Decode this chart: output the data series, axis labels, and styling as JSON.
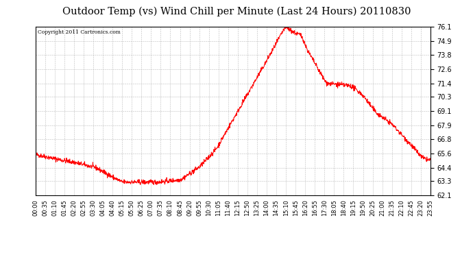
{
  "title": "Outdoor Temp (vs) Wind Chill per Minute (Last 24 Hours) 20110830",
  "copyright_text": "Copyright 2011 Cartronics.com",
  "line_color": "#ff0000",
  "background_color": "#ffffff",
  "plot_bg_color": "#ffffff",
  "grid_color": "#aaaaaa",
  "y_min": 62.1,
  "y_max": 76.1,
  "y_ticks": [
    62.1,
    63.3,
    64.4,
    65.6,
    66.8,
    67.9,
    69.1,
    70.3,
    71.4,
    72.6,
    73.8,
    74.9,
    76.1
  ],
  "x_labels": [
    "00:00",
    "00:35",
    "01:10",
    "01:45",
    "02:20",
    "02:55",
    "03:30",
    "04:05",
    "04:40",
    "05:15",
    "05:50",
    "06:25",
    "07:00",
    "07:35",
    "08:10",
    "08:45",
    "09:20",
    "09:55",
    "10:30",
    "11:05",
    "11:40",
    "12:15",
    "12:50",
    "13:25",
    "14:00",
    "14:35",
    "15:10",
    "15:45",
    "16:20",
    "16:55",
    "17:30",
    "18:05",
    "18:40",
    "19:15",
    "19:50",
    "20:25",
    "21:00",
    "21:35",
    "22:10",
    "22:45",
    "23:20",
    "23:55"
  ],
  "key_times": [
    0,
    80,
    150,
    220,
    315,
    380,
    450,
    530,
    600,
    660,
    710,
    760,
    810,
    855,
    910,
    945,
    970,
    990,
    1020,
    1060,
    1110,
    1150,
    1190,
    1240,
    1300,
    1360,
    1410,
    1439
  ],
  "key_temps": [
    65.5,
    65.1,
    64.8,
    64.4,
    63.2,
    63.2,
    63.2,
    63.4,
    64.5,
    66.0,
    68.0,
    70.0,
    72.0,
    73.8,
    76.1,
    75.6,
    75.4,
    74.2,
    73.0,
    71.4,
    71.3,
    71.2,
    70.5,
    69.0,
    68.0,
    66.5,
    65.2,
    65.0
  ],
  "noise_seed": 42,
  "noise_std": 0.1
}
